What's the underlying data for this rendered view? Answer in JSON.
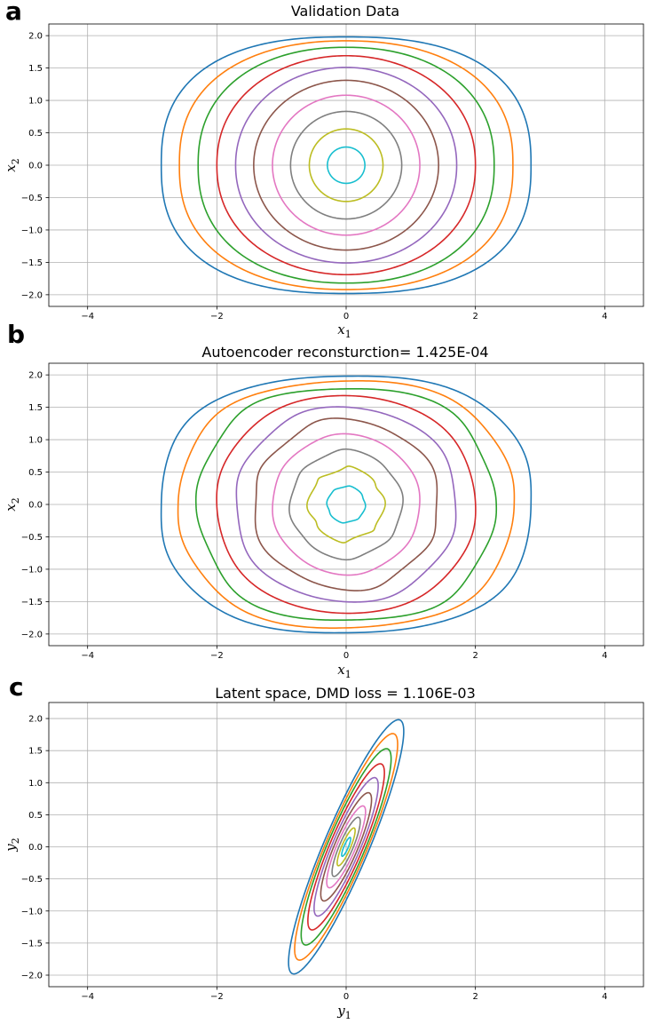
{
  "chart_data": [
    {
      "panel": "a",
      "type": "line",
      "title": "Validation Data",
      "xlabel": "x1",
      "ylabel": "x2",
      "xlim": [
        -4.6,
        4.6
      ],
      "ylim": [
        -2.18,
        2.18
      ],
      "xticks": [
        -4,
        -2,
        0,
        2,
        4
      ],
      "yticks": [
        -2.0,
        -1.5,
        -1.0,
        -0.5,
        0.0,
        0.5,
        1.0,
        1.5,
        2.0
      ],
      "grid": true,
      "shape": "pendulum",
      "series": [
        {
          "color": "#1f77b4",
          "values": [
            2.86,
            1.98
          ]
        },
        {
          "color": "#ff7f0e",
          "values": [
            2.58,
            1.92
          ]
        },
        {
          "color": "#2ca02c",
          "values": [
            2.29,
            1.82
          ]
        },
        {
          "color": "#d62728",
          "values": [
            2.0,
            1.69
          ]
        },
        {
          "color": "#9467bd",
          "values": [
            1.71,
            1.51
          ]
        },
        {
          "color": "#8c564b",
          "values": [
            1.43,
            1.31
          ]
        },
        {
          "color": "#e377c2",
          "values": [
            1.14,
            1.08
          ]
        },
        {
          "color": "#7f7f7f",
          "values": [
            0.86,
            0.83
          ]
        },
        {
          "color": "#bcbd22",
          "values": [
            0.57,
            0.56
          ]
        },
        {
          "color": "#17becf",
          "values": [
            0.29,
            0.28
          ]
        }
      ]
    },
    {
      "panel": "b",
      "type": "line",
      "title": "Autoencoder reconsturction= 1.425E-04",
      "xlabel": "x1",
      "ylabel": "x2",
      "xlim": [
        -4.6,
        4.6
      ],
      "ylim": [
        -2.18,
        2.18
      ],
      "xticks": [
        -4,
        -2,
        0,
        2,
        4
      ],
      "yticks": [
        -2.0,
        -1.5,
        -1.0,
        -0.5,
        0.0,
        0.5,
        1.0,
        1.5,
        2.0
      ],
      "grid": true,
      "shape": "pendulum",
      "series": [
        {
          "color": "#1f77b4",
          "values": [
            2.86,
            1.98
          ]
        },
        {
          "color": "#ff7f0e",
          "values": [
            2.58,
            1.92
          ]
        },
        {
          "color": "#2ca02c",
          "values": [
            2.29,
            1.82
          ]
        },
        {
          "color": "#d62728",
          "values": [
            2.0,
            1.69
          ]
        },
        {
          "color": "#9467bd",
          "values": [
            1.71,
            1.51
          ]
        },
        {
          "color": "#8c564b",
          "values": [
            1.43,
            1.31
          ]
        },
        {
          "color": "#e377c2",
          "values": [
            1.14,
            1.08
          ]
        },
        {
          "color": "#7f7f7f",
          "values": [
            0.86,
            0.83
          ]
        },
        {
          "color": "#bcbd22",
          "values": [
            0.57,
            0.56
          ]
        },
        {
          "color": "#17becf",
          "values": [
            0.29,
            0.28
          ]
        }
      ]
    },
    {
      "panel": "c",
      "type": "line",
      "title": "Latent space, DMD loss = 1.106E-03",
      "xlabel": "y1",
      "ylabel": "y2",
      "xlim": [
        -4.6,
        4.6
      ],
      "ylim": [
        -2.18,
        2.25
      ],
      "xticks": [
        -4,
        -2,
        0,
        2,
        4
      ],
      "yticks": [
        -2.0,
        -1.5,
        -1.0,
        -0.5,
        0.0,
        0.5,
        1.0,
        1.5,
        2.0
      ],
      "grid": true,
      "shape": "tilted",
      "series": [
        {
          "color": "#1f77b4",
          "values": [
            1.45,
            2.02
          ]
        },
        {
          "color": "#ff7f0e",
          "values": [
            1.32,
            1.8
          ]
        },
        {
          "color": "#2ca02c",
          "values": [
            1.2,
            1.56
          ]
        },
        {
          "color": "#d62728",
          "values": [
            1.05,
            1.32
          ]
        },
        {
          "color": "#9467bd",
          "values": [
            0.9,
            1.1
          ]
        },
        {
          "color": "#8c564b",
          "values": [
            0.75,
            0.86
          ]
        },
        {
          "color": "#e377c2",
          "values": [
            0.6,
            0.65
          ]
        },
        {
          "color": "#7f7f7f",
          "values": [
            0.44,
            0.47
          ]
        },
        {
          "color": "#bcbd22",
          "values": [
            0.28,
            0.3
          ]
        },
        {
          "color": "#17becf",
          "values": [
            0.14,
            0.15
          ]
        }
      ]
    }
  ],
  "panel_labels": [
    "a",
    "b",
    "c"
  ]
}
